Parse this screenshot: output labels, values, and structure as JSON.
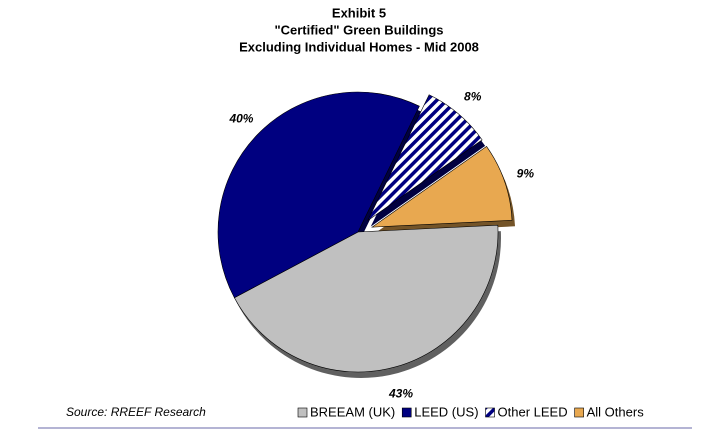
{
  "chart_data": {
    "type": "pie",
    "title": [
      "Exhibit 5",
      "\"Certified\" Green Buildings",
      "Excluding Individual Homes - Mid 2008"
    ],
    "source": "Source: RREEF Research",
    "categories": [
      "BREEAM (UK)",
      "LEED (US)",
      "Other LEED",
      "All Others"
    ],
    "values": [
      43,
      40,
      8,
      9
    ],
    "value_labels": [
      "43%",
      "40%",
      "8%",
      "9%"
    ],
    "colors": [
      "#c0c0c0",
      "#000080",
      "#000080",
      "#e8a850"
    ],
    "hatch": [
      false,
      false,
      true,
      false
    ],
    "explode": [
      false,
      false,
      true,
      true
    ],
    "legend": "bottom"
  }
}
